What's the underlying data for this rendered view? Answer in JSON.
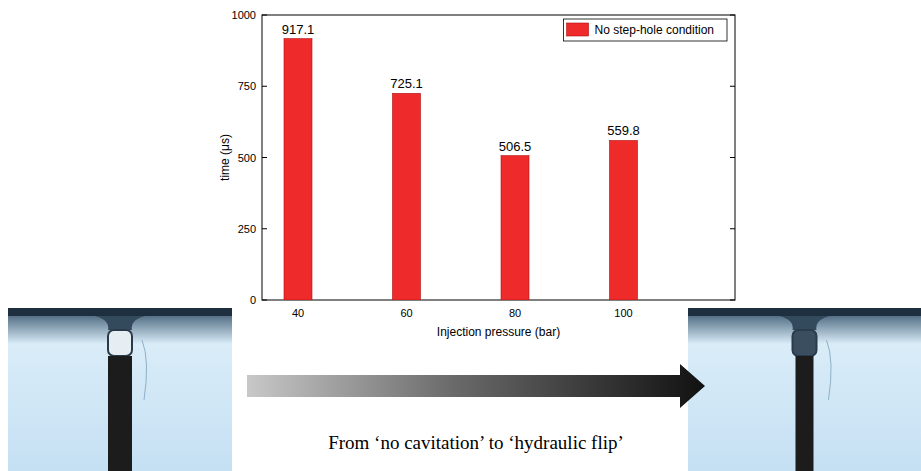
{
  "chart_data": {
    "type": "bar",
    "categories": [
      "40",
      "60",
      "80",
      "100"
    ],
    "series": [
      {
        "name": "No step-hole condition",
        "color": "#ee2a2a",
        "values": [
          917.1,
          725.1,
          506.5,
          559.8
        ]
      }
    ],
    "x_label": "Injection pressure (bar)",
    "y_label": "time (μs)",
    "ylim": [
      0,
      1000
    ],
    "yticks": [
      0,
      250,
      500,
      750,
      1000
    ],
    "legend": "upper right",
    "data_labels": true,
    "grid": false,
    "annotations": [
      "From ‘no cavitation’ to ‘hydraulic flip’"
    ]
  }
}
